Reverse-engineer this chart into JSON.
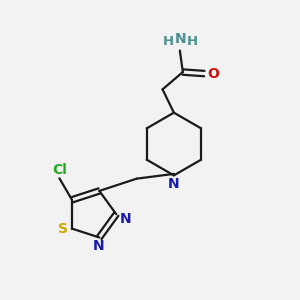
{
  "bg_color": "#f2f2f2",
  "bond_color": "#1a1a1a",
  "N_color": "#1919aa",
  "NH_color": "#4a9090",
  "O_color": "#cc1111",
  "S_color": "#ccaa00",
  "Cl_color": "#22aa22",
  "lw": 1.6,
  "figsize": [
    3.0,
    3.0
  ],
  "dpi": 100,
  "xlim": [
    0,
    10
  ],
  "ylim": [
    0,
    10
  ]
}
